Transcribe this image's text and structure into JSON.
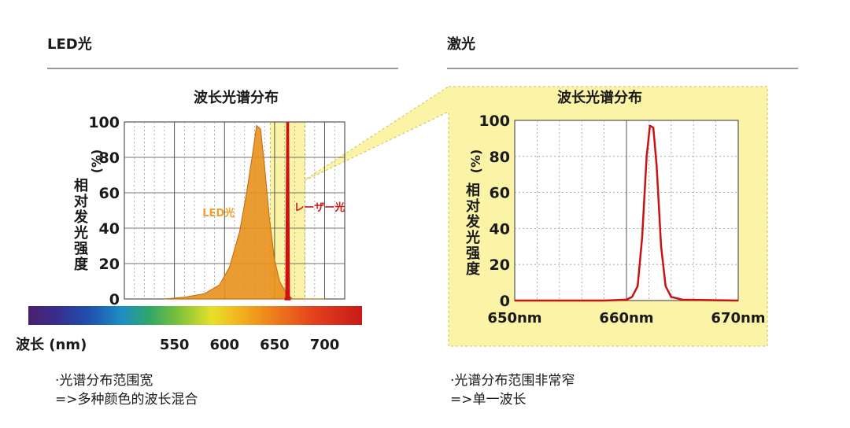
{
  "left_panel": {
    "heading": "LED光",
    "notes": [
      "·光谱分布范围宽",
      "=>多种颜色的波长混合"
    ]
  },
  "right_panel": {
    "heading": "激光",
    "notes": [
      "·光谱分布范围非常窄",
      "=>单一波长"
    ]
  },
  "colors": {
    "led_fill": "#e8901c",
    "led_label": "#f0a030",
    "laser_line": "#cc1111",
    "laser_label": "#d01818",
    "highlight": "#fbf3a6",
    "highlight_border": "#c8c060"
  },
  "chart_data": [
    {
      "type": "area",
      "title": "波长光谱分布",
      "ylabel": "相对发光强度",
      "yunit": "(%)",
      "xlabel": "波长 (nm)",
      "xlim": [
        500,
        720
      ],
      "ylim": [
        0,
        100
      ],
      "yticks": [
        "0",
        "20",
        "40",
        "60",
        "80",
        "100"
      ],
      "xticks": [
        "550",
        "600",
        "650",
        "700"
      ],
      "xtick_values": [
        550,
        600,
        650,
        700
      ],
      "grid": true,
      "series": [
        {
          "name": "LED光",
          "x": [
            540,
            560,
            580,
            595,
            605,
            615,
            622,
            628,
            632,
            636,
            640,
            645,
            650,
            655,
            660,
            664,
            668,
            700
          ],
          "y": [
            0,
            1,
            3,
            8,
            18,
            38,
            60,
            82,
            98,
            96,
            75,
            45,
            22,
            10,
            5,
            2,
            0,
            0
          ]
        },
        {
          "name": "レーザー光",
          "x": [
            660,
            662,
            663,
            664,
            666
          ],
          "y": [
            0,
            0,
            100,
            0,
            0
          ]
        }
      ]
    },
    {
      "type": "line",
      "title": "波长光谱分布",
      "ylabel": "相对发光强度",
      "yunit": "(%)",
      "xlim": [
        650,
        670
      ],
      "ylim": [
        0,
        100
      ],
      "yticks": [
        "0",
        "20",
        "40",
        "60",
        "80",
        "100"
      ],
      "xticks": [
        "650nm",
        "660nm",
        "670nm"
      ],
      "xtick_values": [
        650,
        660,
        670
      ],
      "grid": true,
      "series": [
        {
          "x": [
            650,
            658,
            660,
            660.5,
            661,
            661.4,
            661.8,
            662.1,
            662.4,
            662.7,
            663.1,
            663.5,
            664,
            665,
            670
          ],
          "y": [
            0,
            0,
            0.5,
            2,
            8,
            35,
            80,
            97,
            96,
            75,
            30,
            8,
            2,
            0.5,
            0
          ]
        }
      ]
    }
  ]
}
